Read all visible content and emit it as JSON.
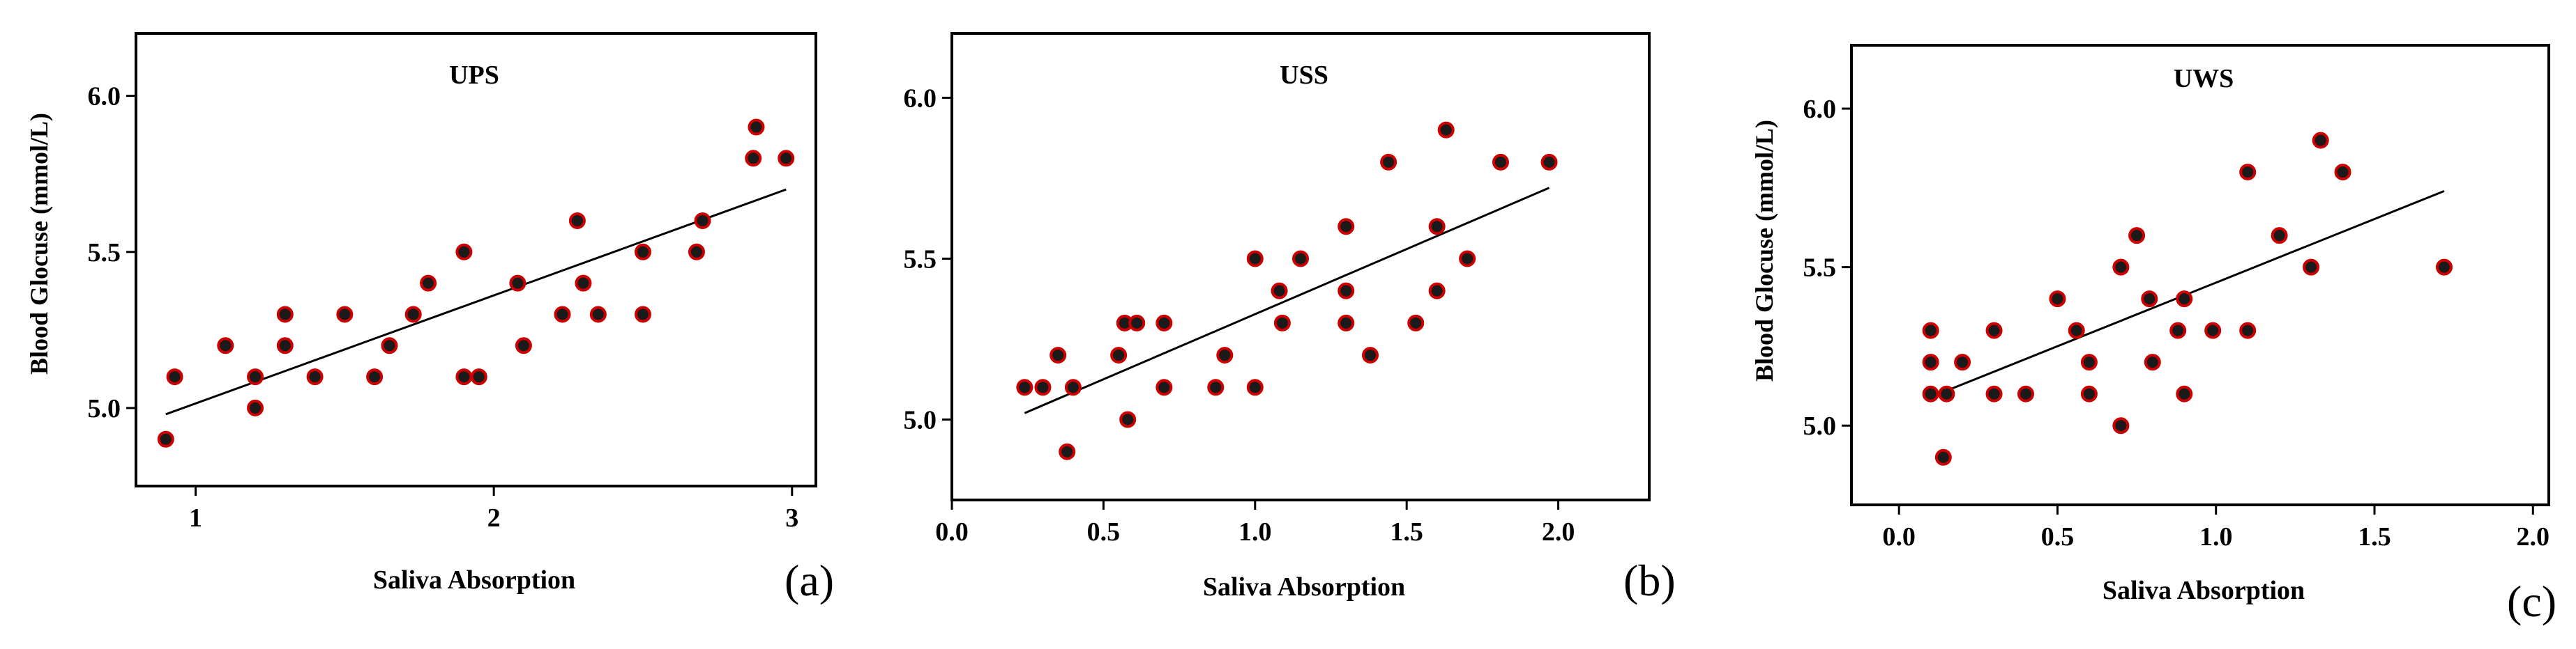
{
  "chart_data": [
    {
      "type": "scatter",
      "panel_label": "(a)",
      "title": "UPS",
      "xlabel": "Saliva Absorption",
      "ylabel": "Blood Glocuse (mmol/L)",
      "xlim": [
        0.8,
        3.08
      ],
      "ylim": [
        4.75,
        6.2
      ],
      "xticks": [
        1,
        2,
        3
      ],
      "xtick_labels": [
        "1",
        "2",
        "3"
      ],
      "yticks": [
        5.0,
        5.5,
        6.0
      ],
      "ytick_labels": [
        "5.0",
        "5.5",
        "6.0"
      ],
      "x": [
        0.9,
        0.93,
        1.1,
        1.2,
        1.2,
        1.3,
        1.3,
        1.4,
        1.5,
        1.6,
        1.65,
        1.73,
        1.78,
        1.9,
        1.9,
        1.95,
        2.08,
        2.1,
        2.23,
        2.28,
        2.3,
        2.35,
        2.5,
        2.5,
        2.68,
        2.7,
        2.87,
        2.88,
        2.98
      ],
      "y": [
        4.9,
        5.1,
        5.2,
        5.1,
        5.0,
        5.3,
        5.2,
        5.1,
        5.3,
        5.1,
        5.2,
        5.3,
        5.4,
        5.5,
        5.1,
        5.1,
        5.4,
        5.2,
        5.3,
        5.6,
        5.4,
        5.3,
        5.3,
        5.5,
        5.5,
        5.6,
        5.8,
        5.9,
        5.8
      ],
      "fit": {
        "x": [
          0.9,
          2.98
        ],
        "y": [
          4.98,
          5.7
        ]
      },
      "grid": false,
      "marker_color": "#1a1a1a",
      "marker_edge": "#cc0000",
      "line_color": "#000000"
    },
    {
      "type": "scatter",
      "panel_label": "(b)",
      "title": "USS",
      "xlabel": "Saliva Absorption",
      "ylabel": "",
      "xlim": [
        0.0,
        2.3
      ],
      "ylim": [
        4.75,
        6.2
      ],
      "xticks": [
        0.0,
        0.5,
        1.0,
        1.5,
        2.0
      ],
      "xtick_labels": [
        "0.0",
        "0.5",
        "1.0",
        "1.5",
        "2.0"
      ],
      "yticks": [
        5.0,
        5.5,
        6.0
      ],
      "ytick_labels": [
        "5.0",
        "5.5",
        "6.0"
      ],
      "x": [
        0.24,
        0.3,
        0.35,
        0.38,
        0.4,
        0.55,
        0.57,
        0.58,
        0.61,
        0.7,
        0.7,
        0.87,
        0.9,
        1.0,
        1.0,
        1.08,
        1.09,
        1.15,
        1.3,
        1.3,
        1.3,
        1.38,
        1.44,
        1.53,
        1.6,
        1.6,
        1.63,
        1.7,
        1.81,
        1.97
      ],
      "y": [
        5.1,
        5.1,
        5.2,
        4.9,
        5.1,
        5.2,
        5.3,
        5.0,
        5.3,
        5.3,
        5.1,
        5.1,
        5.2,
        5.5,
        5.1,
        5.4,
        5.3,
        5.5,
        5.6,
        5.4,
        5.3,
        5.2,
        5.8,
        5.3,
        5.6,
        5.4,
        5.9,
        5.5,
        5.8,
        5.8
      ],
      "fit": {
        "x": [
          0.24,
          1.97
        ],
        "y": [
          5.02,
          5.72
        ]
      },
      "grid": false,
      "marker_color": "#1a1a1a",
      "marker_edge": "#cc0000",
      "line_color": "#000000"
    },
    {
      "type": "scatter",
      "panel_label": "(c)",
      "title": "UWS",
      "xlabel": "Saliva Absorption",
      "ylabel": "Blood Glocuse (mmol/L)",
      "xlim": [
        -0.15,
        2.05
      ],
      "ylim": [
        4.75,
        6.2
      ],
      "xticks": [
        0.0,
        0.5,
        1.0,
        1.5,
        2.0
      ],
      "xtick_labels": [
        "0.0",
        "0.5",
        "1.0",
        "1.5",
        "2.0"
      ],
      "yticks": [
        5.0,
        5.5,
        6.0
      ],
      "ytick_labels": [
        "5.0",
        "5.5",
        "6.0"
      ],
      "x": [
        0.1,
        0.1,
        0.1,
        0.14,
        0.15,
        0.2,
        0.3,
        0.3,
        0.4,
        0.5,
        0.56,
        0.6,
        0.6,
        0.7,
        0.7,
        0.75,
        0.79,
        0.8,
        0.88,
        0.9,
        0.9,
        0.99,
        1.1,
        1.1,
        1.2,
        1.3,
        1.33,
        1.4,
        1.72
      ],
      "y": [
        5.3,
        5.2,
        5.1,
        4.9,
        5.1,
        5.2,
        5.3,
        5.1,
        5.1,
        5.4,
        5.3,
        5.2,
        5.1,
        5.5,
        5.0,
        5.6,
        5.4,
        5.2,
        5.3,
        5.4,
        5.1,
        5.3,
        5.8,
        5.3,
        5.6,
        5.5,
        5.9,
        5.8,
        5.5
      ],
      "fit": {
        "x": [
          0.1,
          1.72
        ],
        "y": [
          5.09,
          5.74
        ]
      },
      "grid": false,
      "marker_color": "#1a1a1a",
      "marker_edge": "#cc0000",
      "line_color": "#000000"
    }
  ]
}
